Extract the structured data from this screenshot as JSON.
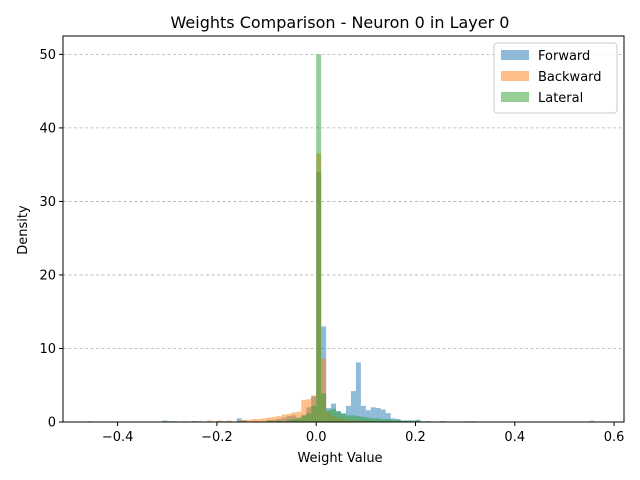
{
  "chart_data": {
    "type": "histogram",
    "title": "Weights Comparison - Neuron 0 in Layer 0",
    "xlabel": "Weight Value",
    "ylabel": "Density",
    "xlim": [
      -0.51,
      0.62
    ],
    "ylim": [
      0,
      52.5
    ],
    "xticks": [
      -0.4,
      -0.2,
      0.0,
      0.2,
      0.4,
      0.6
    ],
    "xtick_labels": [
      "−0.4",
      "−0.2",
      "0.0",
      "0.2",
      "0.4",
      "0.6"
    ],
    "yticks": [
      0,
      10,
      20,
      30,
      40,
      50
    ],
    "ytick_labels": [
      "0",
      "10",
      "20",
      "30",
      "40",
      "50"
    ],
    "grid": "y-dashed",
    "legend_position": "top-right",
    "series": [
      {
        "name": "Forward",
        "color": "#1f77b4",
        "alpha": 0.5,
        "bin_width": 0.01,
        "bins": [
          [
            -0.31,
            0.2
          ],
          [
            -0.29,
            0.1
          ],
          [
            -0.25,
            0.1
          ],
          [
            -0.19,
            0.1
          ],
          [
            -0.16,
            0.5
          ],
          [
            -0.15,
            0.2
          ],
          [
            -0.13,
            0.1
          ],
          [
            -0.1,
            0.2
          ],
          [
            -0.09,
            0.3
          ],
          [
            -0.08,
            0.4
          ],
          [
            -0.07,
            0.6
          ],
          [
            -0.06,
            0.8
          ],
          [
            -0.05,
            0.9
          ],
          [
            -0.04,
            0.6
          ],
          [
            -0.03,
            1.0
          ],
          [
            -0.02,
            2.0
          ],
          [
            -0.01,
            3.5
          ],
          [
            0.0,
            34.0
          ],
          [
            0.01,
            13.0
          ],
          [
            0.02,
            1.9
          ],
          [
            0.03,
            2.5
          ],
          [
            0.04,
            1.5
          ],
          [
            0.05,
            1.2
          ],
          [
            0.06,
            2.2
          ],
          [
            0.07,
            4.2
          ],
          [
            0.08,
            8.1
          ],
          [
            0.09,
            2.2
          ],
          [
            0.1,
            1.6
          ],
          [
            0.11,
            2.0
          ],
          [
            0.12,
            1.9
          ],
          [
            0.13,
            1.7
          ],
          [
            0.14,
            1.2
          ],
          [
            0.15,
            0.5
          ],
          [
            0.16,
            0.4
          ],
          [
            0.17,
            0.2
          ],
          [
            0.18,
            0.2
          ],
          [
            0.19,
            0.2
          ],
          [
            0.2,
            0.3
          ],
          [
            0.21,
            0.1
          ],
          [
            0.22,
            0.1
          ],
          [
            0.25,
            0.1
          ],
          [
            0.31,
            0.1
          ]
        ]
      },
      {
        "name": "Backward",
        "color": "#ff7f0e",
        "alpha": 0.5,
        "bin_width": 0.01,
        "bins": [
          [
            -0.3,
            0.1
          ],
          [
            -0.27,
            0.1
          ],
          [
            -0.24,
            0.1
          ],
          [
            -0.22,
            0.2
          ],
          [
            -0.2,
            0.2
          ],
          [
            -0.18,
            0.2
          ],
          [
            -0.16,
            0.2
          ],
          [
            -0.15,
            0.3
          ],
          [
            -0.14,
            0.3
          ],
          [
            -0.13,
            0.4
          ],
          [
            -0.12,
            0.4
          ],
          [
            -0.11,
            0.5
          ],
          [
            -0.1,
            0.6
          ],
          [
            -0.09,
            0.7
          ],
          [
            -0.08,
            0.8
          ],
          [
            -0.07,
            1.0
          ],
          [
            -0.06,
            1.1
          ],
          [
            -0.05,
            1.3
          ],
          [
            -0.04,
            1.4
          ],
          [
            -0.03,
            3.0
          ],
          [
            -0.02,
            3.1
          ],
          [
            -0.01,
            3.6
          ],
          [
            0.0,
            36.5
          ],
          [
            0.01,
            8.6
          ],
          [
            0.02,
            1.3
          ],
          [
            0.03,
            0.8
          ],
          [
            0.04,
            0.6
          ],
          [
            0.05,
            0.4
          ],
          [
            0.06,
            0.3
          ],
          [
            0.07,
            0.3
          ],
          [
            0.08,
            0.2
          ],
          [
            0.09,
            0.2
          ],
          [
            0.1,
            0.2
          ],
          [
            0.11,
            0.1
          ],
          [
            0.12,
            0.1
          ],
          [
            0.14,
            0.1
          ],
          [
            0.55,
            0.2
          ]
        ]
      },
      {
        "name": "Lateral",
        "color": "#2ca02c",
        "alpha": 0.5,
        "bin_width": 0.01,
        "bins": [
          [
            -0.46,
            0.1
          ],
          [
            -0.3,
            0.1
          ],
          [
            -0.25,
            0.1
          ],
          [
            -0.2,
            0.1
          ],
          [
            -0.15,
            0.1
          ],
          [
            -0.1,
            0.2
          ],
          [
            -0.08,
            0.2
          ],
          [
            -0.06,
            0.3
          ],
          [
            -0.05,
            0.4
          ],
          [
            -0.04,
            0.5
          ],
          [
            -0.03,
            0.8
          ],
          [
            -0.02,
            1.2
          ],
          [
            -0.01,
            2.2
          ],
          [
            0.0,
            50.0
          ],
          [
            0.01,
            3.9
          ],
          [
            0.02,
            1.6
          ],
          [
            0.03,
            1.8
          ],
          [
            0.04,
            1.4
          ],
          [
            0.05,
            1.1
          ],
          [
            0.06,
            0.9
          ],
          [
            0.07,
            0.9
          ],
          [
            0.08,
            0.8
          ],
          [
            0.09,
            0.7
          ],
          [
            0.1,
            0.6
          ],
          [
            0.11,
            0.5
          ],
          [
            0.12,
            0.5
          ],
          [
            0.13,
            0.4
          ],
          [
            0.14,
            0.4
          ],
          [
            0.15,
            0.3
          ],
          [
            0.16,
            0.3
          ],
          [
            0.17,
            0.2
          ],
          [
            0.18,
            0.2
          ],
          [
            0.19,
            0.2
          ],
          [
            0.2,
            0.2
          ],
          [
            0.22,
            0.1
          ],
          [
            0.25,
            0.1
          ],
          [
            0.3,
            0.1
          ]
        ]
      }
    ]
  }
}
